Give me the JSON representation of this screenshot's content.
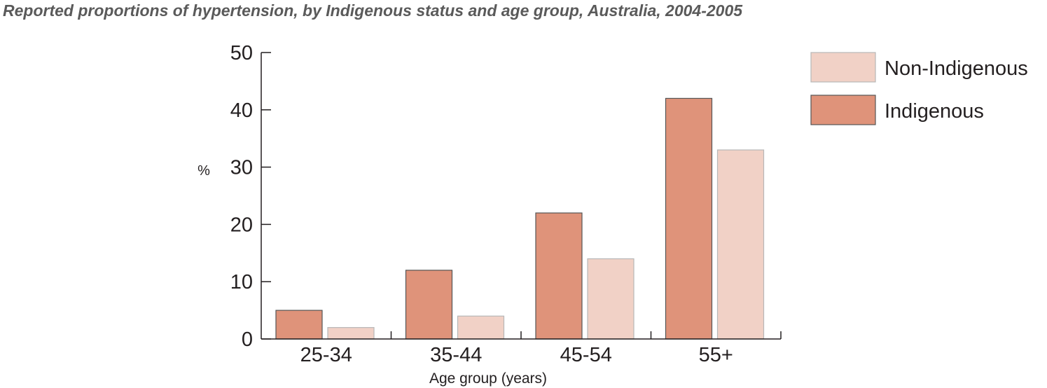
{
  "chart_data": {
    "type": "bar",
    "title": "Reported proportions of hypertension, by Indigenous status and age group, Australia, 2004-2005",
    "xlabel": "Age group (years)",
    "ylabel": "%",
    "categories": [
      "25-34",
      "35-44",
      "45-54",
      "55+"
    ],
    "series": [
      {
        "name": "Indigenous",
        "values": [
          5,
          12,
          22,
          42
        ],
        "color": "#df937a"
      },
      {
        "name": "Non-Indigenous",
        "values": [
          2,
          4,
          14,
          33
        ],
        "color": "#f1d1c6"
      }
    ],
    "ylim": [
      0,
      50
    ],
    "yticks": [
      0,
      10,
      20,
      30,
      40,
      50
    ],
    "legend": {
      "placement": "top-right",
      "order": [
        "Non-Indigenous",
        "Indigenous"
      ]
    },
    "grid": false
  },
  "colors": {
    "axis": "#231f20",
    "bar_outline_indigenous": "#555555",
    "bar_outline_non_indigenous": "#b7b7b7",
    "title": "#5a5a5a"
  }
}
